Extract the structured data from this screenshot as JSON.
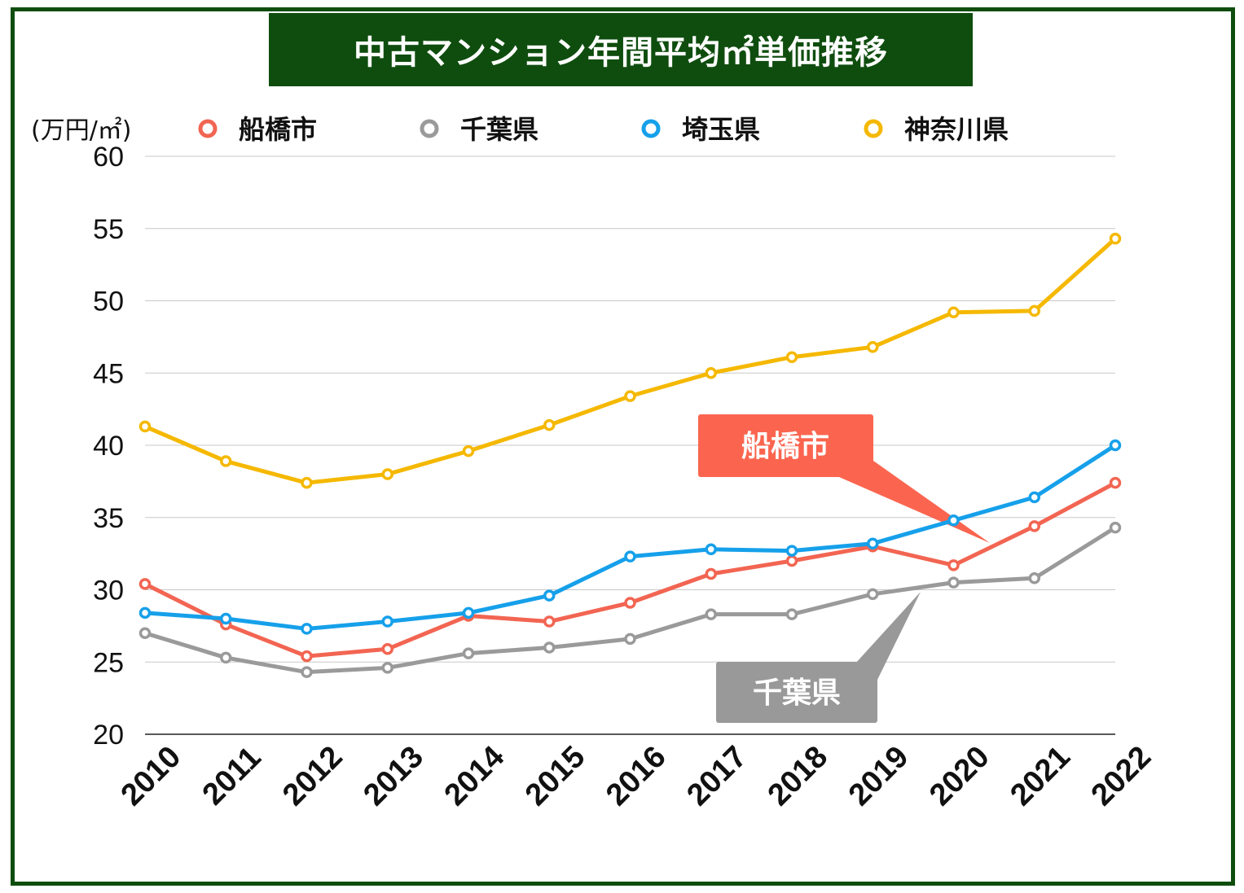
{
  "title": "中古マンション年間平均㎡単価推移",
  "chart_data": {
    "type": "line",
    "title": "中古マンション年間平均㎡単価推移",
    "ylabel": "(万円/㎡)",
    "xlabel": "",
    "ylim": [
      20,
      60
    ],
    "yticks": [
      20,
      25,
      30,
      35,
      40,
      45,
      50,
      55,
      60
    ],
    "categories": [
      "2010",
      "2011",
      "2012",
      "2013",
      "2014",
      "2015",
      "2016",
      "2017",
      "2018",
      "2019",
      "2020",
      "2021",
      "2022"
    ],
    "grid": true,
    "legend_position": "top",
    "series": [
      {
        "name": "船橋市",
        "color": "#f26552",
        "values": [
          30.4,
          27.6,
          25.4,
          25.9,
          28.2,
          27.8,
          29.1,
          31.1,
          32.0,
          33.0,
          31.7,
          34.4,
          37.4
        ]
      },
      {
        "name": "千葉県",
        "color": "#9a9a9a",
        "values": [
          27.0,
          25.3,
          24.3,
          24.6,
          25.6,
          26.0,
          26.6,
          28.3,
          28.3,
          29.7,
          30.5,
          30.8,
          34.3
        ]
      },
      {
        "name": "埼玉県",
        "color": "#16a0ea",
        "values": [
          28.4,
          28.0,
          27.3,
          27.8,
          28.4,
          29.6,
          32.3,
          32.8,
          32.7,
          33.2,
          34.8,
          36.4,
          40.0
        ]
      },
      {
        "name": "神奈川県",
        "color": "#f5b800",
        "values": [
          41.3,
          38.9,
          37.4,
          38.0,
          39.6,
          41.4,
          43.4,
          45.0,
          46.1,
          46.8,
          49.2,
          49.3,
          54.3
        ]
      }
    ],
    "annotations": [
      {
        "text": "船橋市",
        "color": "#fb654f"
      },
      {
        "text": "千葉県",
        "color": "#999999"
      }
    ]
  }
}
